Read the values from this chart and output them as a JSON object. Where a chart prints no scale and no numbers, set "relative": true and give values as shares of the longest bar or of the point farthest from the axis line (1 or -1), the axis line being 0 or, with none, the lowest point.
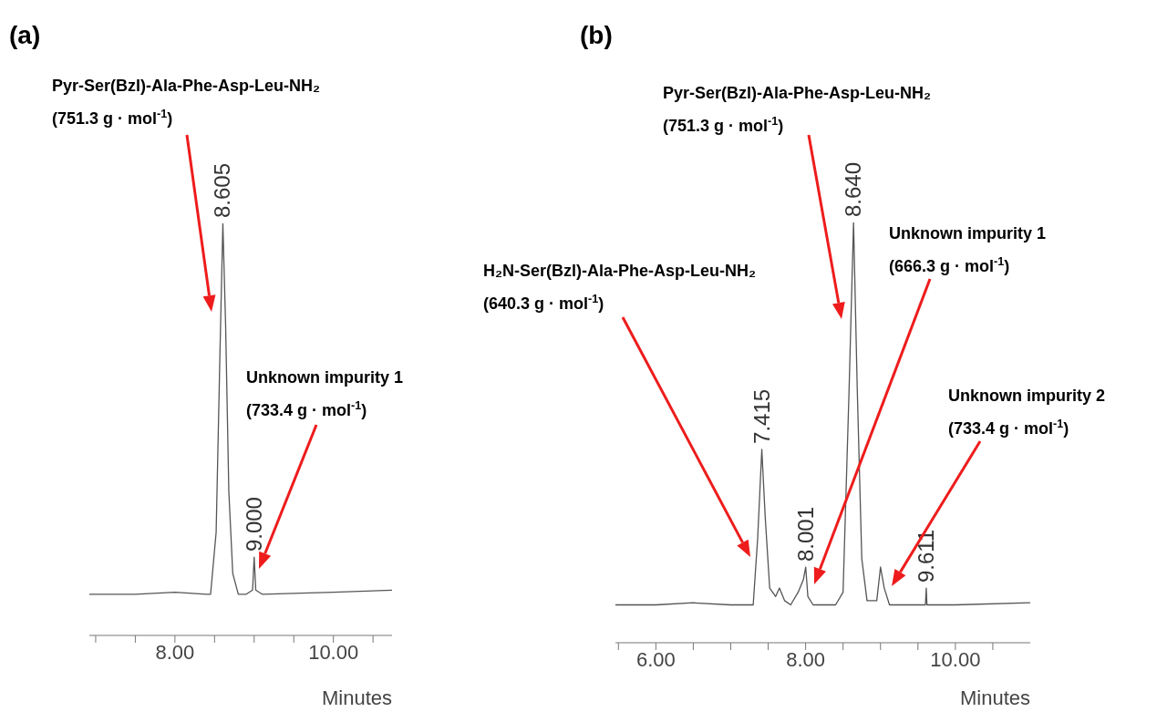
{
  "chart_data": [
    {
      "type": "line",
      "title": "(a)",
      "xlabel": "Minutes",
      "relative": true,
      "color": "#555555",
      "marker": "none",
      "x": [
        6.92,
        7.5,
        8.0,
        8.4,
        8.45,
        8.52,
        8.57,
        8.605,
        8.64,
        8.68,
        8.73,
        8.8,
        8.9,
        8.98,
        9.0,
        9.02,
        9.1,
        10.0,
        10.74
      ],
      "values": [
        0.1,
        0.1,
        0.105,
        0.1,
        0.1,
        0.25,
        0.7,
        1.0,
        0.75,
        0.35,
        0.15,
        0.1,
        0.1,
        0.11,
        0.19,
        0.11,
        0.1,
        0.105,
        0.11
      ],
      "xlim": [
        6.92,
        10.74
      ],
      "xticks": [
        {
          "value": 7,
          "label": null
        },
        {
          "value": 7.5,
          "label": null
        },
        {
          "value": 8,
          "label": "8.00"
        },
        {
          "value": 8.5,
          "label": null
        },
        {
          "value": 9,
          "label": null
        },
        {
          "value": 9.5,
          "label": null
        },
        {
          "value": 10,
          "label": "10.00"
        },
        {
          "value": 10.5,
          "label": null
        }
      ],
      "annotations": [
        {
          "text": "8.605",
          "x": 8.605,
          "y": 1.0
        },
        {
          "text": "9.000",
          "x": 9.0,
          "y": 0.19
        },
        "Pyr-Ser(Bzl)-Ala-Phe-Asp-Leu-NH₂\n(751.3 g · mol$^{-1}$)",
        "Unknown impurity 1\n(733.4 g · mol$^{-1}$)"
      ]
    },
    {
      "type": "line",
      "title": "(b)",
      "xlabel": "Minutes",
      "relative": true,
      "color": "#555555",
      "marker": "none",
      "x": [
        5.46,
        6.0,
        6.5,
        7.0,
        7.3,
        7.36,
        7.415,
        7.46,
        7.52,
        7.6,
        7.65,
        7.72,
        7.8,
        7.9,
        7.97,
        8.001,
        8.03,
        8.1,
        8.4,
        8.5,
        8.58,
        8.64,
        8.69,
        8.75,
        8.82,
        8.95,
        9.0,
        9.05,
        9.12,
        9.6,
        9.611,
        9.62,
        10.0,
        11.0
      ],
      "values": [
        0.09,
        0.09,
        0.095,
        0.09,
        0.09,
        0.25,
        0.46,
        0.3,
        0.13,
        0.11,
        0.13,
        0.1,
        0.09,
        0.12,
        0.15,
        0.18,
        0.11,
        0.09,
        0.09,
        0.12,
        0.6,
        1.0,
        0.6,
        0.2,
        0.1,
        0.1,
        0.18,
        0.13,
        0.09,
        0.09,
        0.13,
        0.09,
        0.09,
        0.095
      ],
      "xlim": [
        5.46,
        11.0
      ],
      "xticks": [
        {
          "value": 5.5,
          "label": null
        },
        {
          "value": 6,
          "label": "6.00"
        },
        {
          "value": 6.5,
          "label": null
        },
        {
          "value": 7,
          "label": null
        },
        {
          "value": 7.5,
          "label": null
        },
        {
          "value": 8,
          "label": "8.00"
        },
        {
          "value": 8.5,
          "label": null
        },
        {
          "value": 9,
          "label": null
        },
        {
          "value": 9.5,
          "label": null
        },
        {
          "value": 10,
          "label": "10.00"
        },
        {
          "value": 10.5,
          "label": null
        }
      ],
      "annotations": [
        {
          "text": "7.415",
          "x": 7.415,
          "y": 0.46
        },
        {
          "text": "8.001",
          "x": 8.001,
          "y": 0.18
        },
        {
          "text": "8.640",
          "x": 8.64,
          "y": 1.0
        },
        {
          "text": "9.611",
          "x": 9.611,
          "y": 0.13
        },
        "H₂N-Ser(Bzl)-Ala-Phe-Asp-Leu-NH₂\n(640.3 g · mol$^{-1}$)",
        "Pyr-Ser(Bzl)-Ala-Phe-Asp-Leu-NH₂\n(751.3 g · mol$^{-1}$)",
        "Unknown impurity 1\n(666.3 g · mol$^{-1}$)",
        "Unknown impurity 2\n(733.4 g · mol$^{-1}$)"
      ]
    }
  ]
}
